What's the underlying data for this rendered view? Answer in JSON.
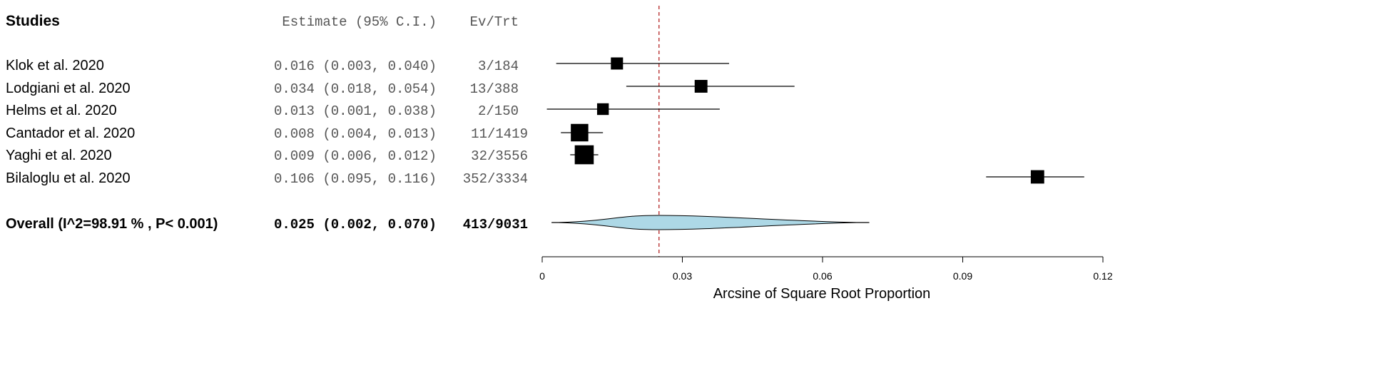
{
  "chart_data": {
    "type": "forest",
    "headers": {
      "studies": "Studies",
      "estimate": "Estimate (95% C.I.)",
      "events": "Ev/Trt"
    },
    "studies": [
      {
        "name": "Klok et al. 2020",
        "estimate": 0.016,
        "ci_low": 0.003,
        "ci_high": 0.04,
        "estimate_text": "0.016 (0.003, 0.040)",
        "events": "3/184",
        "weight": 0.3
      },
      {
        "name": "Lodgiani et al. 2020",
        "estimate": 0.034,
        "ci_low": 0.018,
        "ci_high": 0.054,
        "estimate_text": "0.034 (0.018, 0.054)",
        "events": "13/388",
        "weight": 0.33
      },
      {
        "name": "Helms et al. 2020",
        "estimate": 0.013,
        "ci_low": 0.001,
        "ci_high": 0.038,
        "estimate_text": "0.013 (0.001, 0.038)",
        "events": "2/150",
        "weight": 0.28
      },
      {
        "name": "Cantador et al. 2020",
        "estimate": 0.008,
        "ci_low": 0.004,
        "ci_high": 0.013,
        "estimate_text": "0.008 (0.004, 0.013)",
        "events": "11/1419",
        "weight": 0.55
      },
      {
        "name": "Yaghi et al. 2020",
        "estimate": 0.009,
        "ci_low": 0.006,
        "ci_high": 0.012,
        "estimate_text": "0.009 (0.006, 0.012)",
        "events": "32/3556",
        "weight": 0.62
      },
      {
        "name": "Bilaloglu et al. 2020",
        "estimate": 0.106,
        "ci_low": 0.095,
        "ci_high": 0.116,
        "estimate_text": "0.106 (0.095, 0.116)",
        "events": "352/3334",
        "weight": 0.36
      }
    ],
    "overall": {
      "label": "Overall (I^2=98.91 % , P< 0.001)",
      "estimate": 0.025,
      "ci_low": 0.002,
      "ci_high": 0.07,
      "estimate_text": "0.025 (0.002, 0.070)",
      "events": "413/9031"
    },
    "reference_line": 0.025,
    "xlabel": "Arcsine of Square Root Proportion",
    "xlim": [
      0,
      0.12
    ],
    "xticks": [
      0,
      0.03,
      0.06,
      0.09,
      0.12
    ],
    "xtick_labels": [
      "0",
      "0.03",
      "0.06",
      "0.09",
      "0.12"
    ],
    "colors": {
      "marker": "#000000",
      "diamond_fill": "#add8e6",
      "reference_line": "#b22222",
      "text_gray": "#555555"
    }
  }
}
